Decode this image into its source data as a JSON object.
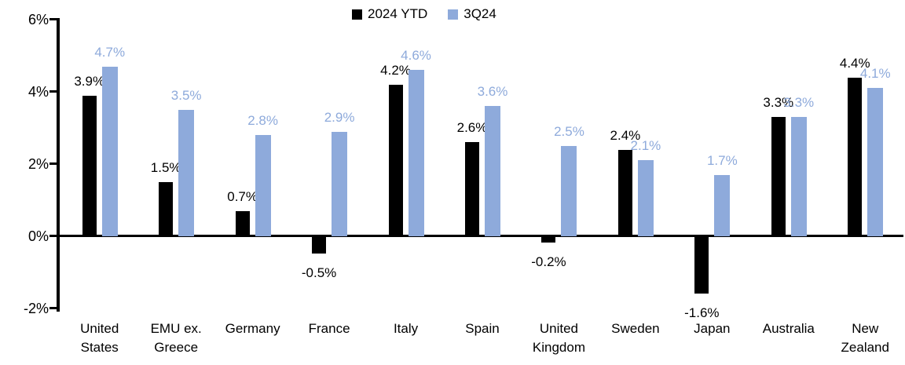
{
  "chart_data": {
    "type": "bar",
    "title": "",
    "xlabel": "",
    "ylabel": "",
    "ylim": [
      -2,
      6
    ],
    "grid": false,
    "legend_position": "top-center",
    "background_color": "#FFFFFF",
    "axis_color": "#000000",
    "y_ticks": [
      {
        "value": 6,
        "label": "6%"
      },
      {
        "value": 4,
        "label": "4%"
      },
      {
        "value": 2,
        "label": "2%"
      },
      {
        "value": 0,
        "label": "0%"
      },
      {
        "value": -2,
        "label": "-2%"
      }
    ],
    "categories": [
      "United States",
      "EMU ex. Greece",
      "Germany",
      "France",
      "Italy",
      "Spain",
      "United Kingdom",
      "Sweden",
      "Japan",
      "Australia",
      "New Zealand"
    ],
    "category_label_lines": [
      [
        "United",
        "States"
      ],
      [
        "EMU ex.",
        "Greece"
      ],
      [
        "Germany"
      ],
      [
        "France"
      ],
      [
        "Italy"
      ],
      [
        "Spain"
      ],
      [
        "United",
        "Kingdom"
      ],
      [
        "Sweden"
      ],
      [
        "Japan"
      ],
      [
        "Australia"
      ],
      [
        "New",
        "Zealand"
      ]
    ],
    "series": [
      {
        "name": "2024 YTD",
        "color": "#000000",
        "label_color": "#000000",
        "values": [
          3.9,
          1.5,
          0.7,
          -0.5,
          4.2,
          2.6,
          -0.2,
          2.4,
          -1.6,
          3.3,
          4.4
        ],
        "labels": [
          "3.9%",
          "1.5%",
          "0.7%",
          "-0.5%",
          "4.2%",
          "2.6%",
          "-0.2%",
          "2.4%",
          "-1.6%",
          "3.3%",
          "4.4%"
        ]
      },
      {
        "name": "3Q24",
        "color": "#8EAADB",
        "label_color": "#8EAADB",
        "values": [
          4.7,
          3.5,
          2.8,
          2.9,
          4.6,
          3.6,
          2.5,
          2.1,
          1.7,
          3.3,
          4.1
        ],
        "labels": [
          "4.7%",
          "3.5%",
          "2.8%",
          "2.9%",
          "4.6%",
          "3.6%",
          "2.5%",
          "2.1%",
          "1.7%",
          "3.3%",
          "4.1%"
        ]
      }
    ]
  }
}
